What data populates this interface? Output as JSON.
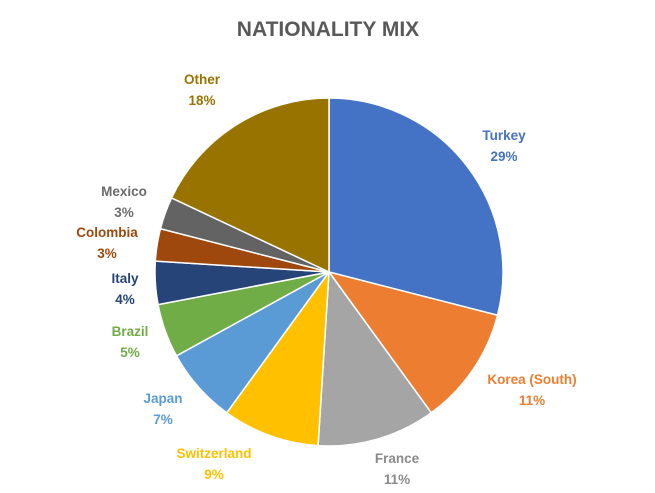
{
  "chart_data": {
    "type": "pie",
    "title": "NATIONALITY MIX",
    "legend": "none",
    "start_angle_deg": 0,
    "direction": "clockwise",
    "slices": [
      {
        "name": "Turkey",
        "value": 29,
        "label": "29%",
        "color": "#4472C4"
      },
      {
        "name": "Korea (South)",
        "value": 11,
        "label": "11%",
        "color": "#ED7D31"
      },
      {
        "name": "France",
        "value": 11,
        "label": "11%",
        "color": "#A5A5A5"
      },
      {
        "name": "Switzerland",
        "value": 9,
        "label": "9%",
        "color": "#FFC000"
      },
      {
        "name": "Japan",
        "value": 7,
        "label": "7%",
        "color": "#5B9BD5"
      },
      {
        "name": "Brazil",
        "value": 5,
        "label": "5%",
        "color": "#70AD47"
      },
      {
        "name": "Italy",
        "value": 4,
        "label": "4%",
        "color": "#264478"
      },
      {
        "name": "Colombia",
        "value": 3,
        "label": "3%",
        "color": "#9E480E"
      },
      {
        "name": "Mexico",
        "value": 3,
        "label": "3%",
        "color": "#636363"
      },
      {
        "name": "Other",
        "value": 18,
        "label": "18%",
        "color": "#997300"
      }
    ]
  }
}
